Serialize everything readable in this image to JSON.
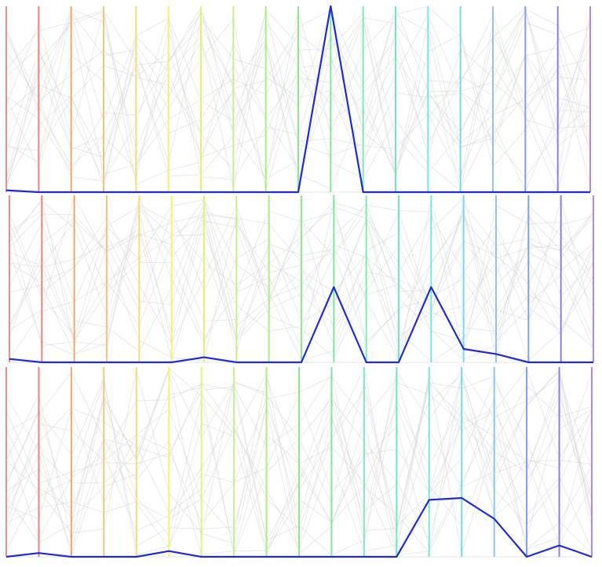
{
  "chart_data": [
    {
      "type": "line",
      "panel": 1,
      "axis_count": 19,
      "ylim": [
        0,
        1
      ],
      "grid": false,
      "legend": "none",
      "axis_colors": [
        "#f28b8b",
        "#f08080",
        "#f5a76a",
        "#f7c27a",
        "#f3df74",
        "#f6f36b",
        "#e2f56b",
        "#c8f08a",
        "#aaf07a",
        "#8fe88b",
        "#7ee8a0",
        "#80eab8",
        "#72e6c6",
        "#7ae7dc",
        "#78d8f0",
        "#8fc3f2",
        "#7da0ee",
        "#8c7de8",
        "#b089f0"
      ],
      "series": [
        {
          "values": [
            0.01,
            0.0,
            0.0,
            0.0,
            0.0,
            0.0,
            0.0,
            0.0,
            0.0,
            0.0,
            1.0,
            0.0,
            0.0,
            0.0,
            0.0,
            0.0,
            0.0,
            0.0,
            0.0
          ]
        }
      ]
    },
    {
      "type": "line",
      "panel": 2,
      "axis_count": 19,
      "ylim": [
        0,
        1
      ],
      "grid": false,
      "legend": "none",
      "axis_colors": [
        "#f28b8b",
        "#f08080",
        "#f5a76a",
        "#f7c27a",
        "#f3df74",
        "#f6f36b",
        "#e2f56b",
        "#c8f08a",
        "#aaf07a",
        "#8fe88b",
        "#7ee8a0",
        "#80eab8",
        "#72e6c6",
        "#7ae7dc",
        "#78d8f0",
        "#8fc3f2",
        "#7da0ee",
        "#8c7de8",
        "#b089f0"
      ],
      "series": [
        {
          "values": [
            0.02,
            0.0,
            0.0,
            0.0,
            0.0,
            0.0,
            0.03,
            0.0,
            0.0,
            0.0,
            0.45,
            0.0,
            0.0,
            0.45,
            0.08,
            0.05,
            0.0,
            0.0,
            0.0
          ]
        }
      ]
    },
    {
      "type": "line",
      "panel": 3,
      "axis_count": 19,
      "ylim": [
        0,
        1
      ],
      "grid": false,
      "legend": "none",
      "axis_colors": [
        "#f28b8b",
        "#f08080",
        "#f5a76a",
        "#f7c27a",
        "#f3df74",
        "#f6f36b",
        "#e2f56b",
        "#c8f08a",
        "#aaf07a",
        "#8fe88b",
        "#7ee8a0",
        "#80eab8",
        "#72e6c6",
        "#7ae7dc",
        "#78d8f0",
        "#8fc3f2",
        "#7da0ee",
        "#8c7de8",
        "#b089f0"
      ],
      "series": [
        {
          "values": [
            0.0,
            0.02,
            0.0,
            0.0,
            0.0,
            0.03,
            0.0,
            0.0,
            0.0,
            0.0,
            0.0,
            0.0,
            0.0,
            0.3,
            0.31,
            0.2,
            0.0,
            0.06,
            0.0
          ]
        }
      ]
    }
  ]
}
